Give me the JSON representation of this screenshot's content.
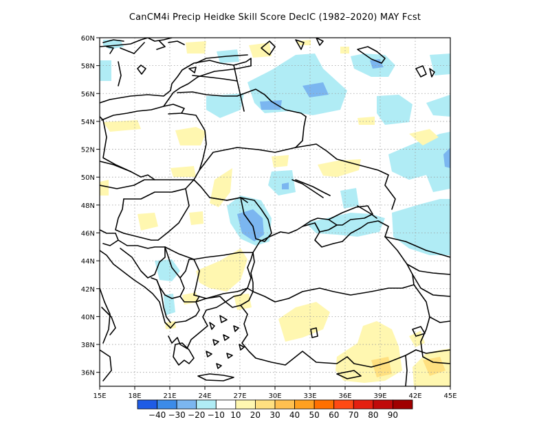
{
  "title": "CanCM4i Precip Heidke Skill Score DecIC (1982–2020) MAY Fcst",
  "map": {
    "lon_range": [
      15,
      45
    ],
    "lat_range": [
      35,
      60
    ],
    "x_ticks": [
      "15E",
      "18E",
      "21E",
      "24E",
      "27E",
      "30E",
      "33E",
      "36E",
      "39E",
      "42E",
      "45E"
    ],
    "y_ticks": [
      "36N",
      "38N",
      "40N",
      "42N",
      "44N",
      "46N",
      "48N",
      "50N",
      "52N",
      "54N",
      "56N",
      "58N",
      "60N"
    ]
  },
  "colorbar": {
    "colors": [
      "#1f5ce6",
      "#3c8be8",
      "#7bb6f0",
      "#b0ecf5",
      "#ffffff",
      "#fff7b0",
      "#ffe080",
      "#ffc050",
      "#ffa020",
      "#ff7000",
      "#ff4a14",
      "#e42010",
      "#c00a0a",
      "#a00000"
    ],
    "labels": [
      "−40",
      "−30",
      "−20",
      "−10",
      "10",
      "20",
      "30",
      "40",
      "50",
      "60",
      "70",
      "80",
      "90"
    ]
  },
  "shading": {
    "light_blue": "#b0ecf5",
    "mid_blue": "#7bb6f0",
    "light_yellow": "#fff7b0",
    "yellow": "#ffe080"
  }
}
